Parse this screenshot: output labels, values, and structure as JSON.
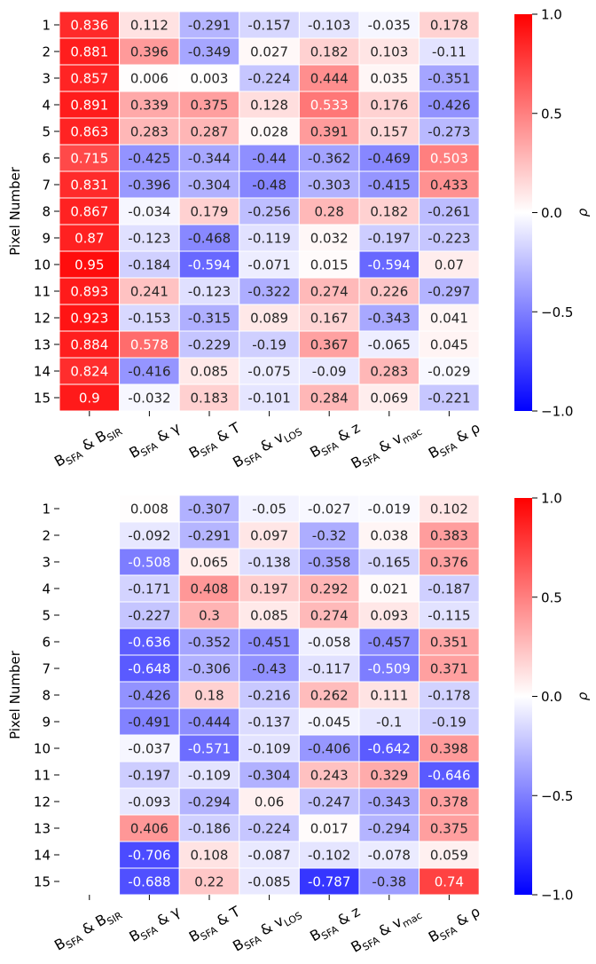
{
  "chart_data": [
    {
      "type": "heatmap",
      "ylabel": "Pixel Number",
      "yticks": [
        "1",
        "2",
        "3",
        "4",
        "5",
        "6",
        "7",
        "8",
        "9",
        "10",
        "11",
        "12",
        "13",
        "14",
        "15"
      ],
      "xticks": [
        {
          "parts": [
            [
              "B",
              ""
            ],
            [
              "SFA",
              "sub"
            ],
            [
              " & ",
              ""
            ],
            [
              "B",
              ""
            ],
            [
              "SIR",
              "sub"
            ]
          ]
        },
        {
          "parts": [
            [
              "B",
              ""
            ],
            [
              "SFA",
              "sub"
            ],
            [
              " & γ",
              ""
            ]
          ]
        },
        {
          "parts": [
            [
              "B",
              ""
            ],
            [
              "SFA",
              "sub"
            ],
            [
              " & T",
              ""
            ]
          ]
        },
        {
          "parts": [
            [
              "B",
              ""
            ],
            [
              "SFA",
              "sub"
            ],
            [
              " & v",
              ""
            ],
            [
              "LOS",
              "sub"
            ]
          ]
        },
        {
          "parts": [
            [
              "B",
              ""
            ],
            [
              "SFA",
              "sub"
            ],
            [
              " & z",
              ""
            ]
          ]
        },
        {
          "parts": [
            [
              "B",
              ""
            ],
            [
              "SFA",
              "sub"
            ],
            [
              " & v",
              ""
            ],
            [
              "mac",
              "sub"
            ]
          ]
        },
        {
          "parts": [
            [
              "B",
              ""
            ],
            [
              "SFA",
              "sub"
            ],
            [
              " & ρ",
              ""
            ]
          ]
        }
      ],
      "colorbar": {
        "label": "ρ",
        "range": [
          -1.0,
          1.0
        ],
        "ticks": [
          "1.0",
          "0.5",
          "0.0",
          "−0.5",
          "−1.0"
        ],
        "cmap": [
          "#0000ff",
          "#ffffff",
          "#ff0000"
        ]
      },
      "values": [
        [
          "0.836",
          "0.112",
          "-0.291",
          "-0.157",
          "-0.103",
          "-0.035",
          "0.178"
        ],
        [
          "0.881",
          "0.396",
          "-0.349",
          "0.027",
          "0.182",
          "0.103",
          "-0.11"
        ],
        [
          "0.857",
          "0.006",
          "0.003",
          "-0.224",
          "0.444",
          "0.035",
          "-0.351"
        ],
        [
          "0.891",
          "0.339",
          "0.375",
          "0.128",
          "0.533",
          "0.176",
          "-0.426"
        ],
        [
          "0.863",
          "0.283",
          "0.287",
          "0.028",
          "0.391",
          "0.157",
          "-0.273"
        ],
        [
          "0.715",
          "-0.425",
          "-0.344",
          "-0.44",
          "-0.362",
          "-0.469",
          "0.503"
        ],
        [
          "0.831",
          "-0.396",
          "-0.304",
          "-0.48",
          "-0.303",
          "-0.415",
          "0.433"
        ],
        [
          "0.867",
          "-0.034",
          "0.179",
          "-0.256",
          "0.28",
          "0.182",
          "-0.261"
        ],
        [
          "0.87",
          "-0.123",
          "-0.468",
          "-0.119",
          "0.032",
          "-0.197",
          "-0.223"
        ],
        [
          "0.95",
          "-0.184",
          "-0.594",
          "-0.071",
          "0.015",
          "-0.594",
          "0.07"
        ],
        [
          "0.893",
          "0.241",
          "-0.123",
          "-0.322",
          "0.274",
          "0.226",
          "-0.297"
        ],
        [
          "0.923",
          "-0.153",
          "-0.315",
          "0.089",
          "0.167",
          "-0.343",
          "0.041"
        ],
        [
          "0.884",
          "0.578",
          "-0.229",
          "-0.19",
          "0.367",
          "-0.065",
          "0.045"
        ],
        [
          "0.824",
          "-0.416",
          "0.085",
          "-0.075",
          "-0.09",
          "0.283",
          "-0.029"
        ],
        [
          "0.9",
          "-0.032",
          "0.183",
          "-0.101",
          "0.284",
          "0.069",
          "-0.221"
        ]
      ]
    },
    {
      "type": "heatmap",
      "ylabel": "Pixel Number",
      "yticks": [
        "1",
        "2",
        "3",
        "4",
        "5",
        "6",
        "7",
        "8",
        "9",
        "10",
        "11",
        "12",
        "13",
        "14",
        "15"
      ],
      "xticks": [
        {
          "parts": [
            [
              "B",
              ""
            ],
            [
              "SFA",
              "sub"
            ],
            [
              " & ",
              ""
            ],
            [
              "B",
              ""
            ],
            [
              "SIR",
              "sub"
            ]
          ]
        },
        {
          "parts": [
            [
              "B",
              ""
            ],
            [
              "SFA",
              "sub"
            ],
            [
              " & γ",
              ""
            ]
          ]
        },
        {
          "parts": [
            [
              "B",
              ""
            ],
            [
              "SFA",
              "sub"
            ],
            [
              " & T",
              ""
            ]
          ]
        },
        {
          "parts": [
            [
              "B",
              ""
            ],
            [
              "SFA",
              "sub"
            ],
            [
              " & v",
              ""
            ],
            [
              "LOS",
              "sub"
            ]
          ]
        },
        {
          "parts": [
            [
              "B",
              ""
            ],
            [
              "SFA",
              "sub"
            ],
            [
              " & z",
              ""
            ]
          ]
        },
        {
          "parts": [
            [
              "B",
              ""
            ],
            [
              "SFA",
              "sub"
            ],
            [
              " & v",
              ""
            ],
            [
              "mac",
              "sub"
            ]
          ]
        },
        {
          "parts": [
            [
              "B",
              ""
            ],
            [
              "SFA",
              "sub"
            ],
            [
              " & ρ",
              ""
            ]
          ]
        }
      ],
      "colorbar": {
        "label": "ρ",
        "range": [
          -1.0,
          1.0
        ],
        "ticks": [
          "1.0",
          "0.5",
          "0.0",
          "−0.5",
          "−1.0"
        ],
        "cmap": [
          "#0000ff",
          "#ffffff",
          "#ff0000"
        ]
      },
      "values": [
        [
          null,
          "0.008",
          "-0.307",
          "-0.05",
          "-0.027",
          "-0.019",
          "0.102"
        ],
        [
          null,
          "-0.092",
          "-0.291",
          "0.097",
          "-0.32",
          "0.038",
          "0.383"
        ],
        [
          null,
          "-0.508",
          "0.065",
          "-0.138",
          "-0.358",
          "-0.165",
          "0.376"
        ],
        [
          null,
          "-0.171",
          "0.408",
          "0.197",
          "0.292",
          "0.021",
          "-0.187"
        ],
        [
          null,
          "-0.227",
          "0.3",
          "0.085",
          "0.274",
          "0.093",
          "-0.115"
        ],
        [
          null,
          "-0.636",
          "-0.352",
          "-0.451",
          "-0.058",
          "-0.457",
          "0.351"
        ],
        [
          null,
          "-0.648",
          "-0.306",
          "-0.43",
          "-0.117",
          "-0.509",
          "0.371"
        ],
        [
          null,
          "-0.426",
          "0.18",
          "-0.216",
          "0.262",
          "0.111",
          "-0.178"
        ],
        [
          null,
          "-0.491",
          "-0.444",
          "-0.137",
          "-0.045",
          "-0.1",
          "-0.19"
        ],
        [
          null,
          "-0.037",
          "-0.571",
          "-0.109",
          "-0.406",
          "-0.642",
          "0.398"
        ],
        [
          null,
          "-0.197",
          "-0.109",
          "-0.304",
          "0.243",
          "0.329",
          "-0.646"
        ],
        [
          null,
          "-0.093",
          "-0.294",
          "0.06",
          "-0.247",
          "-0.343",
          "0.378"
        ],
        [
          null,
          "0.406",
          "-0.186",
          "-0.224",
          "0.017",
          "-0.294",
          "0.375"
        ],
        [
          null,
          "-0.706",
          "0.108",
          "-0.087",
          "-0.102",
          "-0.078",
          "0.059"
        ],
        [
          null,
          "-0.688",
          "0.22",
          "-0.085",
          "-0.787",
          "-0.38",
          "0.74"
        ]
      ]
    }
  ]
}
